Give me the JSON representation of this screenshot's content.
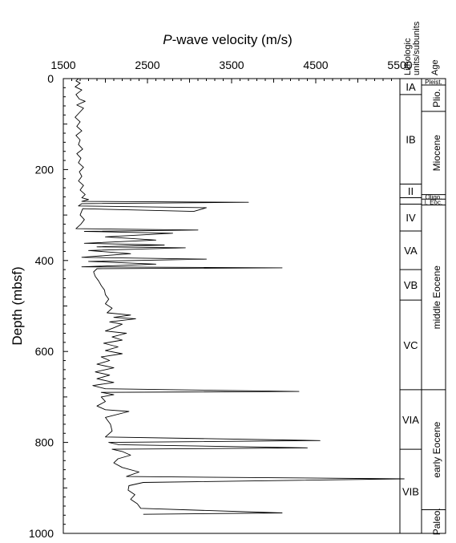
{
  "chart_data": {
    "type": "line",
    "title": "",
    "xlabel": "P-wave velocity (m/s)",
    "xlabel_italic": "P",
    "xlabel_rest": "-wave velocity (m/s)",
    "ylabel": "Depth (mbsf)",
    "xlim": [
      1500,
      5500
    ],
    "ylim": [
      0,
      1000
    ],
    "x_ticks": [
      1500,
      2500,
      3500,
      4500,
      5500
    ],
    "y_ticks": [
      0,
      200,
      400,
      600,
      800,
      1000
    ],
    "y_inverted": true,
    "series": [
      {
        "values": [
          [
            1680,
            0
          ],
          [
            1650,
            5
          ],
          [
            1700,
            10
          ],
          [
            1640,
            18
          ],
          [
            1720,
            25
          ],
          [
            1650,
            35
          ],
          [
            1690,
            45
          ],
          [
            1760,
            50
          ],
          [
            1660,
            58
          ],
          [
            1740,
            65
          ],
          [
            1690,
            75
          ],
          [
            1640,
            85
          ],
          [
            1700,
            95
          ],
          [
            1660,
            105
          ],
          [
            1720,
            115
          ],
          [
            1650,
            125
          ],
          [
            1700,
            135
          ],
          [
            1680,
            145
          ],
          [
            1730,
            155
          ],
          [
            1660,
            165
          ],
          [
            1710,
            175
          ],
          [
            1680,
            185
          ],
          [
            1740,
            195
          ],
          [
            1690,
            205
          ],
          [
            1720,
            215
          ],
          [
            1680,
            225
          ],
          [
            1740,
            235
          ],
          [
            1700,
            245
          ],
          [
            1760,
            255
          ],
          [
            1720,
            262
          ],
          [
            1800,
            266
          ],
          [
            1720,
            270
          ],
          [
            3700,
            272
          ],
          [
            1720,
            275
          ],
          [
            1680,
            280
          ],
          [
            3200,
            284
          ],
          [
            3050,
            292
          ],
          [
            1730,
            286
          ],
          [
            1700,
            300
          ],
          [
            1750,
            310
          ],
          [
            1710,
            320
          ],
          [
            1650,
            330
          ],
          [
            3100,
            333
          ],
          [
            1750,
            336
          ],
          [
            2800,
            340
          ],
          [
            2000,
            348
          ],
          [
            2600,
            355
          ],
          [
            1750,
            362
          ],
          [
            2700,
            366
          ],
          [
            1900,
            370
          ],
          [
            2950,
            372
          ],
          [
            1800,
            378
          ],
          [
            2300,
            385
          ],
          [
            1720,
            393
          ],
          [
            3200,
            397
          ],
          [
            1800,
            402
          ],
          [
            2600,
            408
          ],
          [
            1720,
            414
          ],
          [
            4100,
            416
          ],
          [
            1900,
            418
          ],
          [
            1860,
            425
          ],
          [
            1880,
            435
          ],
          [
            1920,
            445
          ],
          [
            1950,
            455
          ],
          [
            1990,
            465
          ],
          [
            2000,
            475
          ],
          [
            2040,
            485
          ],
          [
            2000,
            495
          ],
          [
            2080,
            505
          ],
          [
            2020,
            515
          ],
          [
            2300,
            520
          ],
          [
            2100,
            525
          ],
          [
            2360,
            528
          ],
          [
            2050,
            535
          ],
          [
            2200,
            540
          ],
          [
            2100,
            548
          ],
          [
            2000,
            555
          ],
          [
            2250,
            560
          ],
          [
            2080,
            568
          ],
          [
            2200,
            575
          ],
          [
            1980,
            582
          ],
          [
            2150,
            590
          ],
          [
            2000,
            598
          ],
          [
            2200,
            605
          ],
          [
            1950,
            612
          ],
          [
            2050,
            620
          ],
          [
            1900,
            628
          ],
          [
            2100,
            636
          ],
          [
            1880,
            645
          ],
          [
            2050,
            652
          ],
          [
            1900,
            660
          ],
          [
            2100,
            668
          ],
          [
            1850,
            675
          ],
          [
            2000,
            682
          ],
          [
            4300,
            688
          ],
          [
            1950,
            690
          ],
          [
            2100,
            695
          ],
          [
            1950,
            700
          ],
          [
            2000,
            710
          ],
          [
            1900,
            720
          ],
          [
            2000,
            728
          ],
          [
            2280,
            732
          ],
          [
            2000,
            745
          ],
          [
            2060,
            760
          ],
          [
            2080,
            775
          ],
          [
            2000,
            788
          ],
          [
            4550,
            796
          ],
          [
            2040,
            800
          ],
          [
            2160,
            805
          ],
          [
            4400,
            812
          ],
          [
            2080,
            815
          ],
          [
            2200,
            820
          ],
          [
            2300,
            828
          ],
          [
            2150,
            836
          ],
          [
            2100,
            845
          ],
          [
            2200,
            855
          ],
          [
            2400,
            865
          ],
          [
            2250,
            875
          ],
          [
            5550,
            880
          ],
          [
            2450,
            888
          ],
          [
            2280,
            895
          ],
          [
            2270,
            905
          ],
          [
            2350,
            915
          ],
          [
            2300,
            925
          ],
          [
            2380,
            935
          ],
          [
            2420,
            945
          ],
          [
            4100,
            955
          ],
          [
            2450,
            958
          ]
        ]
      }
    ]
  },
  "columns": {
    "units_header_line1": "Lithologic",
    "units_header_line2": "units/subunits",
    "age_header": "Age"
  },
  "units": [
    {
      "label": "IA",
      "top": 0,
      "bottom": 35
    },
    {
      "label": "IB",
      "top": 35,
      "bottom": 232
    },
    {
      "label": "II",
      "top": 232,
      "bottom": 262
    },
    {
      "label": "",
      "top": 262,
      "bottom": 276
    },
    {
      "label": "IV",
      "top": 276,
      "bottom": 335
    },
    {
      "label": "VA",
      "top": 335,
      "bottom": 420
    },
    {
      "label": "VB",
      "top": 420,
      "bottom": 487
    },
    {
      "label": "VC",
      "top": 487,
      "bottom": 684
    },
    {
      "label": "VIA",
      "top": 684,
      "bottom": 815
    },
    {
      "label": "VIB",
      "top": 815,
      "bottom": 1000
    }
  ],
  "ages": [
    {
      "label": "Pleist.",
      "top": 0,
      "bottom": 14,
      "small": true
    },
    {
      "label": "Plio.",
      "top": 14,
      "bottom": 72,
      "small": false
    },
    {
      "label": "Miocene",
      "top": 72,
      "bottom": 255,
      "small": false
    },
    {
      "label": "Oligo.",
      "top": 255,
      "bottom": 265,
      "small": true
    },
    {
      "label": "l. Eoc.",
      "top": 265,
      "bottom": 278,
      "small": true
    },
    {
      "label": "middle Eocene",
      "top": 278,
      "bottom": 684,
      "small": false
    },
    {
      "label": "early Eocene",
      "top": 684,
      "bottom": 948,
      "small": false
    },
    {
      "label": "Paleo.",
      "top": 948,
      "bottom": 1000,
      "small": false
    }
  ]
}
